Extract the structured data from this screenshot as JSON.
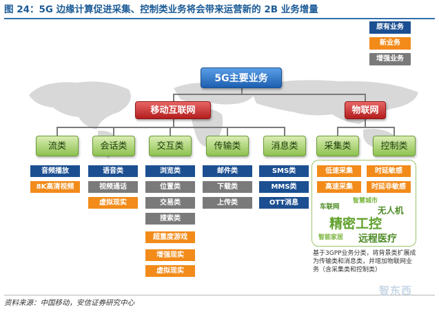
{
  "title": "图 24：5G 边缘计算促进采集、控制类业务将会带来运营新的 2B 业务增量",
  "legend": [
    {
      "label": "原有业务",
      "color": "#1c4f91"
    },
    {
      "label": "新业务",
      "color": "#f28b1a"
    },
    {
      "label": "增强业务",
      "color": "#7a7a7a"
    }
  ],
  "core": "5G主要业务",
  "branches": {
    "mobile_internet": "移动互联网",
    "iot": "物联网"
  },
  "categories": [
    "流类",
    "会话类",
    "交互类",
    "传输类",
    "消息类",
    "采集类",
    "控制类"
  ],
  "columns": [
    [
      {
        "label": "音频播放",
        "type": "blue"
      },
      {
        "label": "8K高清视频",
        "type": "orange"
      }
    ],
    [
      {
        "label": "语音类",
        "type": "blue"
      },
      {
        "label": "视频通话",
        "type": "gray"
      },
      {
        "label": "虚拟现实",
        "type": "orange"
      }
    ],
    [
      {
        "label": "浏览类",
        "type": "blue"
      },
      {
        "label": "位置类",
        "type": "gray"
      },
      {
        "label": "交易类",
        "type": "gray"
      },
      {
        "label": "搜索类",
        "type": "gray"
      },
      {
        "label": "超重度游戏",
        "type": "orange"
      },
      {
        "label": "增强现实",
        "type": "orange"
      },
      {
        "label": "虚拟现实",
        "type": "orange"
      }
    ],
    [
      {
        "label": "邮件类",
        "type": "blue"
      },
      {
        "label": "下载类",
        "type": "gray"
      },
      {
        "label": "上传类",
        "type": "gray"
      }
    ],
    [
      {
        "label": "SMS类",
        "type": "blue"
      },
      {
        "label": "MMS类",
        "type": "blue"
      },
      {
        "label": "OTT消息",
        "type": "blue"
      }
    ]
  ],
  "iot_tags": [
    {
      "label": "低速采集",
      "type": "orange"
    },
    {
      "label": "时延敏感",
      "type": "orange"
    },
    {
      "label": "高速采集",
      "type": "orange"
    },
    {
      "label": "时延非敏感",
      "type": "orange"
    }
  ],
  "iot_cloud": [
    "车联网",
    "智慧城市",
    "无人机",
    "精密工控",
    "智能家居",
    "远程医疗"
  ],
  "iot_note": "基于3GPP业务分类，将背景类扩展成为传输类和消息类，并增加物联网业务（含采集类和控制类）",
  "source": "资料来源：中国移动，安信证券研究中心",
  "watermark": "智东西"
}
